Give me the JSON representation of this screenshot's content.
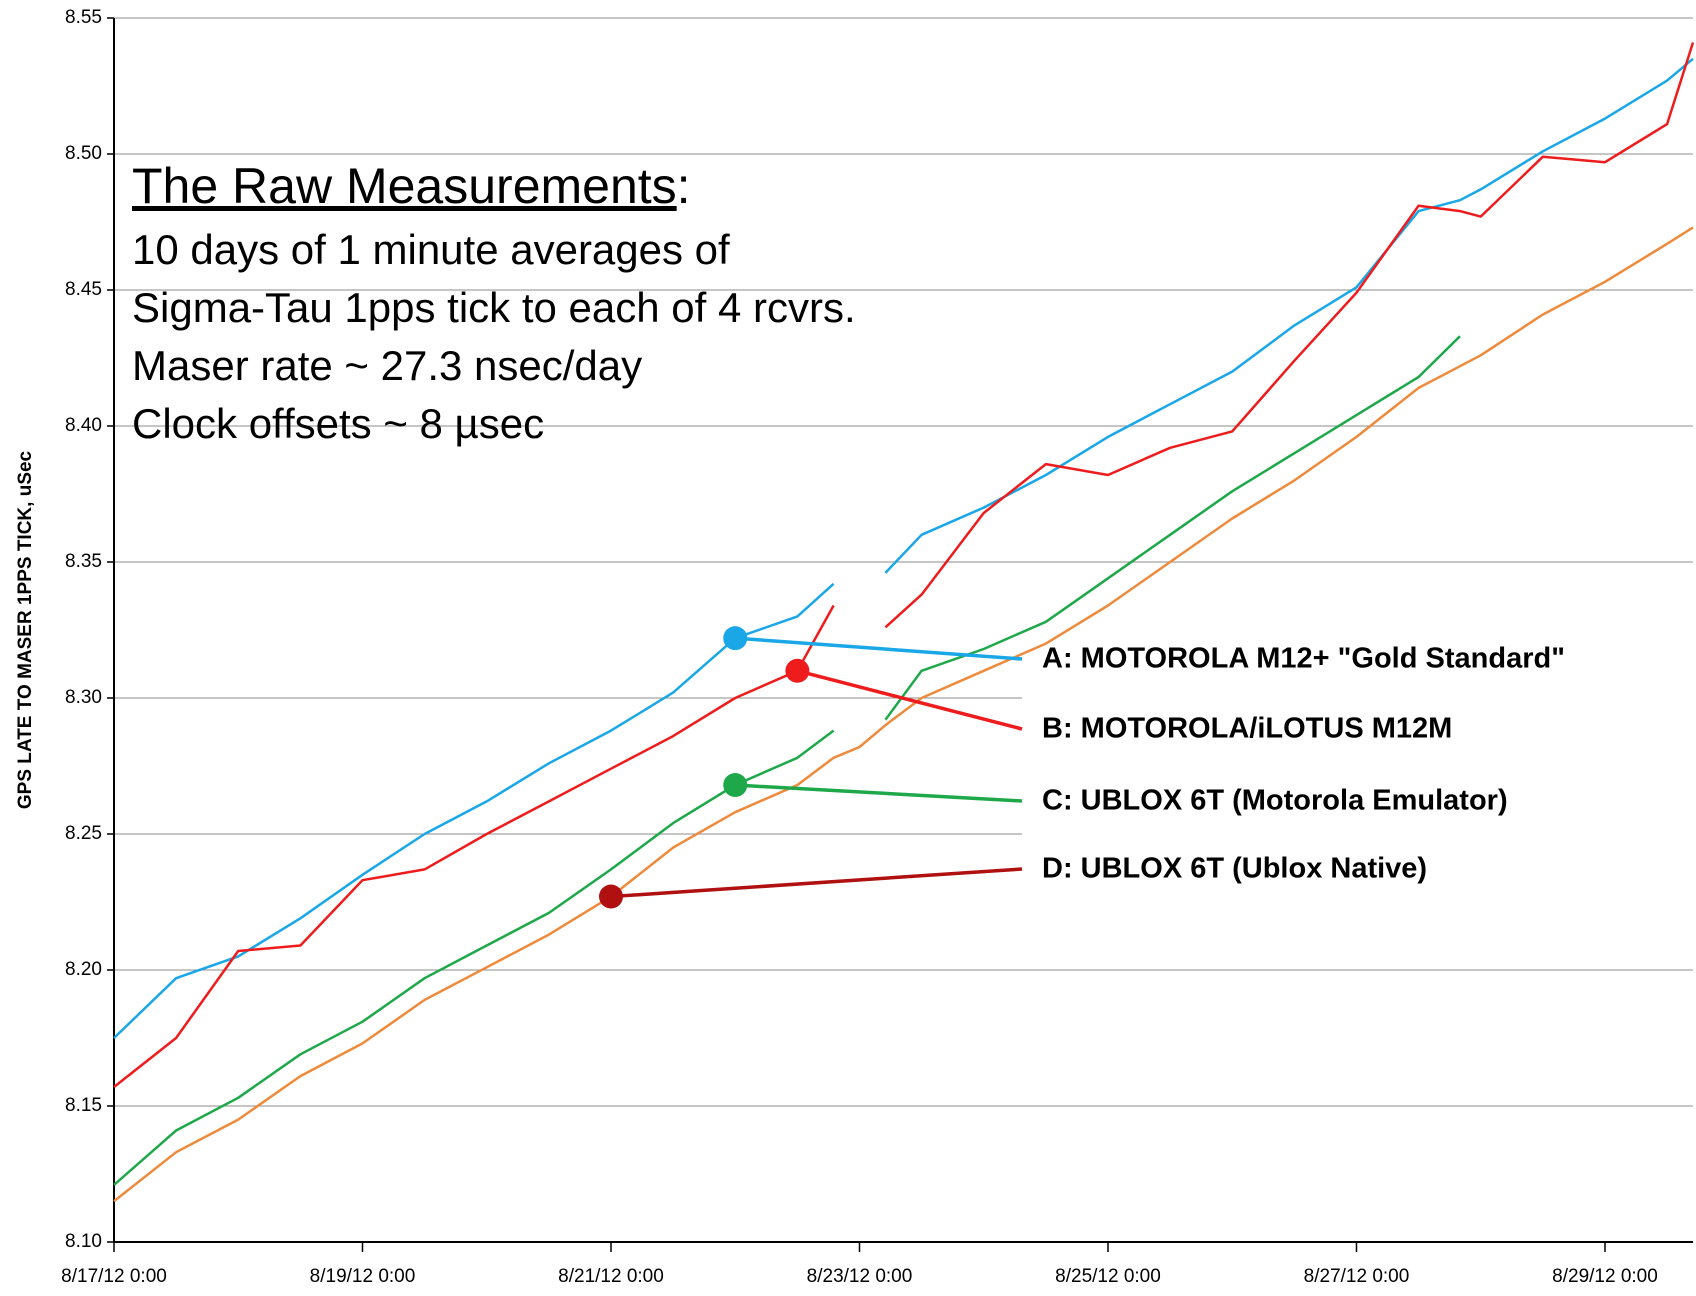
{
  "chart_data": {
    "type": "line",
    "y_label": "GPS  LATE TO MASER  1PPS TICK, uSec",
    "annotation": {
      "heading": "The Raw Measurements",
      "heading_suffix": ":",
      "lines": [
        "10 days of 1 minute averages of",
        "Sigma-Tau 1pps tick to each of 4 rcvrs.",
        "Maser rate ~ 27.3 nsec/day",
        "Clock offsets ~ 8 µsec"
      ]
    },
    "x": [
      "8/17/12 0:00",
      "8/17/12 12:00",
      "8/18/12 0:00",
      "8/18/12 12:00",
      "8/19/12 0:00",
      "8/19/12 12:00",
      "8/20/12 0:00",
      "8/20/12 12:00",
      "8/21/12 0:00",
      "8/21/12 12:00",
      "8/22/12 0:00",
      "8/22/12 12:00",
      "8/22/12 19:00",
      "8/23/12 0:00",
      "8/23/12 5:00",
      "8/23/12 12:00",
      "8/24/12 0:00",
      "8/24/12 12:00",
      "8/25/12 0:00",
      "8/25/12 12:00",
      "8/26/12 0:00",
      "8/26/12 12:00",
      "8/27/12 0:00",
      "8/27/12 12:00",
      "8/27/12 20:00",
      "8/28/12 0:00",
      "8/28/12 12:00",
      "8/29/12 0:00",
      "8/29/12 12:00",
      "8/29/12 17:00"
    ],
    "series": [
      {
        "name": "A: MOTOROLA M12+ \"Gold Standard\"",
        "color": "#1aa7e8",
        "marker_color": "#1aa7e8",
        "values": [
          8.175,
          8.197,
          8.205,
          8.219,
          8.235,
          8.25,
          8.262,
          8.276,
          8.288,
          8.302,
          8.322,
          8.33,
          8.342,
          null,
          8.346,
          8.36,
          8.37,
          8.382,
          8.396,
          8.408,
          8.42,
          8.437,
          8.451,
          8.479,
          8.483,
          8.487,
          8.501,
          8.513,
          8.527,
          8.535
        ]
      },
      {
        "name": "B:  MOTOROLA/iLOTUS M12M",
        "color": "#ee1c1c",
        "marker_color": "#ee1c1c",
        "values": [
          8.157,
          8.175,
          8.207,
          8.209,
          8.233,
          8.237,
          8.25,
          8.262,
          8.274,
          8.286,
          8.3,
          8.31,
          8.334,
          null,
          8.326,
          8.338,
          8.368,
          8.386,
          8.382,
          8.392,
          8.398,
          8.424,
          8.449,
          8.481,
          8.479,
          8.477,
          8.499,
          8.497,
          8.511,
          8.541
        ]
      },
      {
        "name": "C:  UBLOX 6T (Motorola Emulator)",
        "color": "#1ea84a",
        "marker_color": "#1ea84a",
        "values": [
          8.121,
          8.141,
          8.153,
          8.169,
          8.181,
          8.197,
          8.209,
          8.221,
          8.237,
          8.254,
          8.268,
          8.278,
          8.288,
          null,
          8.292,
          8.31,
          8.318,
          8.328,
          8.344,
          8.36,
          8.376,
          8.39,
          8.404,
          8.418,
          8.433,
          null,
          null,
          null,
          null,
          null
        ]
      },
      {
        "name": "D:  UBLOX 6T (Ublox Native)",
        "color": "#ee8a3c",
        "marker_color": "#b01010",
        "values": [
          8.115,
          8.133,
          8.145,
          8.161,
          8.173,
          8.189,
          8.201,
          8.213,
          8.227,
          8.245,
          8.258,
          8.268,
          8.278,
          8.282,
          8.29,
          8.3,
          8.31,
          8.32,
          8.334,
          8.35,
          8.366,
          8.38,
          8.396,
          8.414,
          8.422,
          8.426,
          8.441,
          8.453,
          8.467,
          8.473
        ]
      }
    ],
    "xlim": [
      "8/17/12 0:00",
      "8/29/12 17:00"
    ],
    "xticks": [
      "8/17/12 0:00",
      "8/19/12 0:00",
      "8/21/12 0:00",
      "8/23/12 0:00",
      "8/25/12 0:00",
      "8/27/12 0:00",
      "8/29/12 0:00"
    ],
    "ylim": [
      8.1,
      8.55
    ],
    "yticks": [
      {
        "value": 8.1,
        "label": "8.10"
      },
      8.15,
      {
        "value": 8.2,
        "label": "8.20"
      },
      8.25,
      {
        "value": 8.3,
        "label": "8.30"
      },
      8.35,
      {
        "value": 8.4,
        "label": "8.40"
      },
      8.45,
      {
        "value": 8.5,
        "label": "8.50"
      },
      8.55
    ],
    "grid": true
  }
}
